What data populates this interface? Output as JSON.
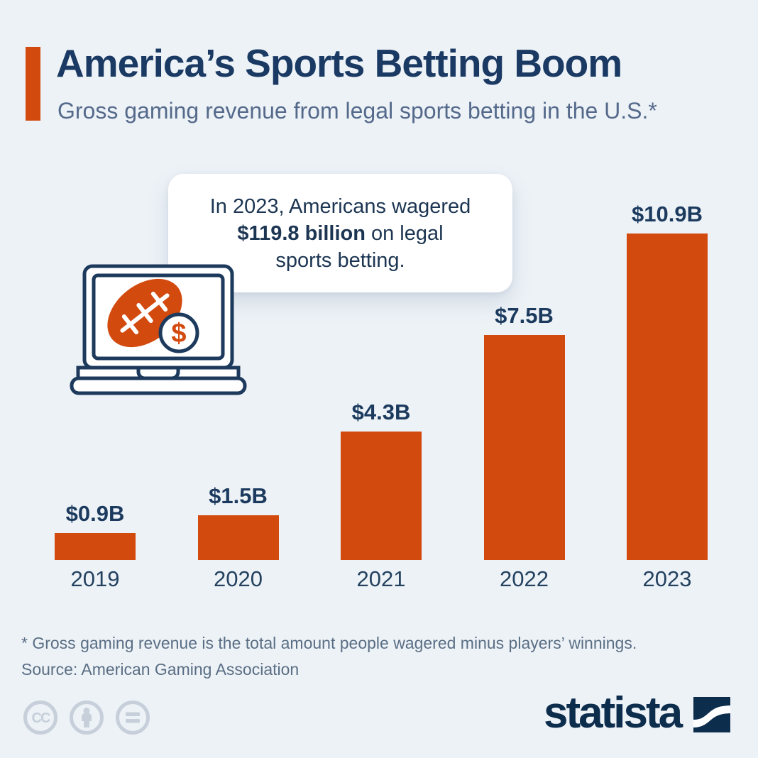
{
  "page": {
    "background_color": "#edf2f7",
    "accent_color": "#d34a0f",
    "navy_color": "#1a3a63"
  },
  "header": {
    "title": "America’s Sports Betting Boom",
    "subtitle": "Gross gaming revenue from legal sports betting in the U.S.*"
  },
  "callout": {
    "line1": "In 2023, Americans wagered",
    "line2_bold": "$119.8 billion",
    "line2_rest": " on legal",
    "line3": "sports betting."
  },
  "icons": {
    "laptop": "laptop-icon",
    "football": "football-icon",
    "dollar": "dollar-coin-icon",
    "license": [
      "cc-icon",
      "attribution-person-icon",
      "equals-icon"
    ],
    "brand_mark": "statista-swoosh-icon"
  },
  "chart_data": {
    "type": "bar",
    "categories": [
      "2019",
      "2020",
      "2021",
      "2022",
      "2023"
    ],
    "values": [
      0.9,
      1.5,
      4.3,
      7.5,
      10.9
    ],
    "value_labels": [
      "$0.9B",
      "$1.5B",
      "$4.3B",
      "$7.5B",
      "$10.9B"
    ],
    "unit": "billion U.S. dollars",
    "title": "Gross gaming revenue from legal sports betting in the U.S.",
    "xlabel": "",
    "ylabel": "Gross gaming revenue",
    "ylim": [
      0,
      11.5
    ],
    "bar_color": "#d34a0f",
    "grid": false,
    "legend": false,
    "value_labels_position": "above bars",
    "annotation": "In 2023, Americans wagered $119.8 billion on legal sports betting."
  },
  "footer": {
    "footnote": "* Gross gaming revenue is the total amount people wagered minus players’ winnings.",
    "source": "Source: American Gaming Association",
    "brand": "statista"
  }
}
